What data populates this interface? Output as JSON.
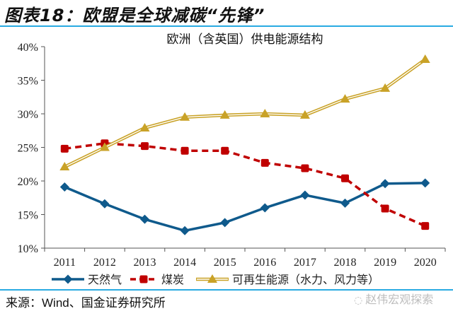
{
  "figure": {
    "title": "图表18：欧盟是全球减碳“先锋”",
    "source": "来源：Wind、国金证券研究所",
    "watermark": "赵伟宏观探索",
    "watermark_icon": "wechat-icon",
    "accent_color": "#29abe2"
  },
  "chart_data": {
    "type": "line",
    "title": "欧洲（含英国）供电能源结构",
    "xlabel": "",
    "ylabel": "",
    "categories": [
      "2011",
      "2012",
      "2013",
      "2014",
      "2015",
      "2016",
      "2017",
      "2018",
      "2019",
      "2020"
    ],
    "ylim": [
      0.1,
      0.4
    ],
    "yticks": [
      0.1,
      0.15,
      0.2,
      0.25,
      0.3,
      0.35,
      0.4
    ],
    "ytick_labels": [
      "10%",
      "15%",
      "20%",
      "25%",
      "30%",
      "35%",
      "40%"
    ],
    "grid": false,
    "legend_position": "bottom",
    "series": [
      {
        "name": "天然气",
        "color": "#0f5a8c",
        "style": "solid",
        "marker": "diamond",
        "values": [
          0.191,
          0.166,
          0.143,
          0.126,
          0.138,
          0.16,
          0.179,
          0.167,
          0.196,
          0.197
        ]
      },
      {
        "name": "煤炭",
        "color": "#c00000",
        "style": "dashed",
        "marker": "square",
        "values": [
          0.248,
          0.256,
          0.252,
          0.245,
          0.245,
          0.227,
          0.219,
          0.204,
          0.159,
          0.133
        ]
      },
      {
        "name": "可再生能源（水力、风力等）",
        "color": "#c9a227",
        "style": "double",
        "marker": "triangle",
        "values": [
          0.221,
          0.25,
          0.279,
          0.295,
          0.298,
          0.3,
          0.298,
          0.322,
          0.338,
          0.381
        ]
      }
    ]
  }
}
